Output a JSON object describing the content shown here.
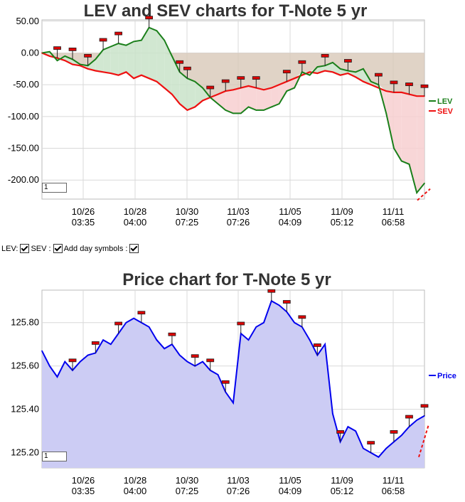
{
  "colors": {
    "lev": "#1a7f1a",
    "sev": "#ee1111",
    "price": "#0000ee",
    "price_fill": "#ccccf4",
    "lev_above_fill": "#c9e3c9",
    "sev_above_fill": "#f7cfd0",
    "neg_fill": "#d8c8b8",
    "grid": "#d9d9d9",
    "trend": "#ee1111",
    "marker": "#dd0000"
  },
  "zoom_box_value": "1",
  "controls": {
    "lev_label": "LEV:",
    "sev_label": "SEV :",
    "day_symbols_label": "Add day symbols :"
  },
  "x_tick_labels": [
    {
      "date": "10/26",
      "time": "03:35"
    },
    {
      "date": "10/28",
      "time": "04:00"
    },
    {
      "date": "10/30",
      "time": "07:25"
    },
    {
      "date": "11/03",
      "time": "07:26"
    },
    {
      "date": "11/05",
      "time": "04:09"
    },
    {
      "date": "11/09",
      "time": "05:12"
    },
    {
      "date": "11/11",
      "time": "06:58"
    }
  ],
  "chart_data": [
    {
      "type": "line",
      "title": "LEV and SEV charts for T-Note 5 yr",
      "ylim": [
        -230,
        52
      ],
      "yticks": [
        "50.00",
        "0.00",
        "-50.00",
        "-100.00",
        "-150.00",
        "-200.00"
      ],
      "ytick_values": [
        50,
        0,
        -50,
        -100,
        -150,
        -200
      ],
      "legend_position": "right",
      "grid": true,
      "x": [
        0,
        2,
        4,
        6,
        8,
        10,
        12,
        14,
        16,
        18,
        20,
        22,
        24,
        26,
        28,
        30,
        32,
        34,
        36,
        38,
        40,
        42,
        44,
        46,
        48,
        50,
        52,
        54,
        56,
        58,
        60,
        62,
        64,
        66,
        68,
        70,
        72,
        74,
        76,
        78,
        80,
        82,
        84,
        86,
        88,
        90,
        92,
        94,
        96,
        98,
        100
      ],
      "series": [
        {
          "name": "LEV",
          "values": [
            0,
            2,
            -12,
            -5,
            -10,
            -18,
            -20,
            -10,
            5,
            10,
            15,
            12,
            18,
            20,
            40,
            35,
            20,
            -5,
            -30,
            -40,
            -45,
            -55,
            -70,
            -80,
            -90,
            -95,
            -95,
            -85,
            -90,
            -90,
            -85,
            -80,
            -60,
            -55,
            -30,
            -35,
            -22,
            -20,
            -15,
            -25,
            -28,
            -30,
            -25,
            -45,
            -50,
            -95,
            -150,
            -170,
            -175,
            -220,
            -205
          ]
        },
        {
          "name": "SEV",
          "values": [
            0,
            -5,
            -8,
            -12,
            -18,
            -20,
            -25,
            -28,
            -30,
            -32,
            -35,
            -30,
            -40,
            -35,
            -40,
            -45,
            -55,
            -65,
            -80,
            -90,
            -85,
            -75,
            -70,
            -65,
            -60,
            -58,
            -55,
            -52,
            -55,
            -58,
            -55,
            -50,
            -45,
            -40,
            -35,
            -30,
            -32,
            -28,
            -30,
            -35,
            -32,
            -38,
            -45,
            -50,
            -55,
            -60,
            -62,
            -62,
            -65,
            -68,
            -68
          ]
        }
      ],
      "marker_indices": [
        2,
        4,
        6,
        8,
        10,
        14,
        18,
        19,
        22,
        24,
        26,
        28,
        32,
        34,
        37,
        40,
        44,
        46,
        48,
        50
      ]
    },
    {
      "type": "area",
      "title": "Price chart for T-Note 5 yr",
      "ylim": [
        125.13,
        125.95
      ],
      "yticks": [
        "125.80",
        "125.60",
        "125.40",
        "125.20"
      ],
      "ytick_values": [
        125.8,
        125.6,
        125.4,
        125.2
      ],
      "legend_position": "right",
      "grid": true,
      "x": [
        0,
        2,
        4,
        6,
        8,
        10,
        12,
        14,
        16,
        18,
        20,
        22,
        24,
        26,
        28,
        30,
        32,
        34,
        36,
        38,
        40,
        42,
        44,
        46,
        48,
        50,
        52,
        54,
        56,
        58,
        60,
        62,
        64,
        66,
        68,
        70,
        72,
        74,
        76,
        78,
        80,
        82,
        84,
        86,
        88,
        90,
        92,
        94,
        96,
        98,
        100
      ],
      "series": [
        {
          "name": "Price",
          "values": [
            125.67,
            125.6,
            125.55,
            125.62,
            125.58,
            125.62,
            125.65,
            125.66,
            125.72,
            125.7,
            125.75,
            125.8,
            125.82,
            125.8,
            125.78,
            125.72,
            125.68,
            125.7,
            125.65,
            125.62,
            125.6,
            125.62,
            125.58,
            125.56,
            125.48,
            125.43,
            125.75,
            125.72,
            125.78,
            125.8,
            125.9,
            125.88,
            125.85,
            125.8,
            125.78,
            125.72,
            125.65,
            125.7,
            125.38,
            125.25,
            125.32,
            125.3,
            125.22,
            125.2,
            125.18,
            125.22,
            125.25,
            125.28,
            125.32,
            125.35,
            125.37
          ]
        }
      ],
      "marker_indices": [
        4,
        7,
        10,
        13,
        17,
        20,
        22,
        24,
        26,
        30,
        32,
        34,
        36,
        39,
        43,
        46,
        48,
        50
      ]
    }
  ]
}
